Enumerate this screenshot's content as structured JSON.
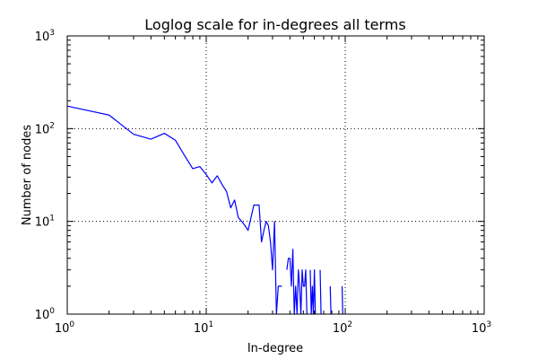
{
  "chart_data": {
    "type": "line",
    "title": "Loglog scale for in-degrees all terms",
    "xlabel": "In-degree",
    "ylabel": "Number of nodes",
    "xscale": "log",
    "yscale": "log",
    "xlim": [
      1,
      1000
    ],
    "ylim": [
      1,
      1000
    ],
    "grid": true,
    "grid_style": "dotted",
    "x_ticks": [
      {
        "base": "10",
        "exp": "0"
      },
      {
        "base": "10",
        "exp": "1"
      },
      {
        "base": "10",
        "exp": "2"
      },
      {
        "base": "10",
        "exp": "3"
      }
    ],
    "y_ticks": [
      {
        "base": "10",
        "exp": "0"
      },
      {
        "base": "10",
        "exp": "1"
      },
      {
        "base": "10",
        "exp": "2"
      },
      {
        "base": "10",
        "exp": "3"
      }
    ],
    "series": [
      {
        "color": "#0000ff",
        "points": [
          [
            1,
            175
          ],
          [
            2,
            140
          ],
          [
            3,
            87
          ],
          [
            4,
            77
          ],
          [
            5,
            89
          ],
          [
            6,
            75
          ],
          [
            7,
            51
          ],
          [
            8,
            37
          ],
          [
            9,
            39
          ],
          [
            10,
            32
          ],
          [
            11,
            26
          ],
          [
            12,
            31
          ],
          [
            13,
            25
          ],
          [
            14,
            21
          ],
          [
            15,
            14
          ],
          [
            16,
            17
          ],
          [
            17,
            11
          ],
          [
            18,
            10
          ],
          [
            19,
            9
          ],
          [
            20,
            8
          ],
          [
            21,
            11
          ],
          [
            22,
            15
          ],
          [
            23,
            15
          ],
          [
            24,
            15
          ],
          [
            25,
            6
          ],
          [
            26,
            8
          ],
          [
            27,
            10
          ],
          [
            28,
            9
          ],
          [
            29,
            6
          ],
          [
            30,
            3
          ],
          [
            31,
            10
          ],
          [
            32,
            1
          ],
          [
            33,
            2
          ],
          [
            34,
            2
          ],
          [
            35,
            2
          ],
          [
            36,
            null
          ],
          [
            38,
            3
          ],
          [
            39,
            4
          ],
          [
            40,
            4
          ],
          [
            41,
            2
          ],
          [
            42,
            5
          ],
          [
            43,
            1
          ],
          [
            44,
            2
          ],
          [
            45,
            1
          ],
          [
            46,
            3
          ],
          [
            47,
            2
          ],
          [
            48,
            1
          ],
          [
            49,
            3
          ],
          [
            50,
            2
          ],
          [
            51,
            2
          ],
          [
            52,
            3
          ],
          [
            53,
            1
          ],
          [
            54,
            null
          ],
          [
            56,
            3
          ],
          [
            57,
            1
          ],
          [
            58,
            2
          ],
          [
            59,
            1
          ],
          [
            60,
            3
          ],
          [
            61,
            1
          ],
          [
            62,
            null
          ],
          [
            66,
            3
          ],
          [
            67,
            1
          ],
          [
            68,
            null
          ],
          [
            78,
            2
          ],
          [
            79,
            1
          ],
          [
            80,
            null
          ],
          [
            95,
            2
          ],
          [
            96,
            1
          ]
        ]
      }
    ]
  }
}
